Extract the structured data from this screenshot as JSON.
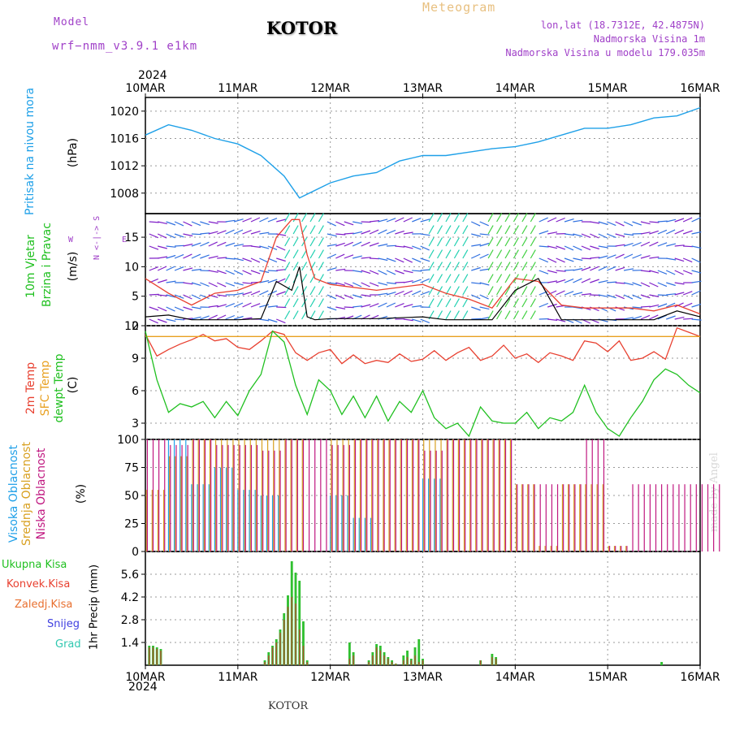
{
  "header": {
    "model_label": "Model",
    "model_name": "wrf−nmm_v3.9.1 e1km",
    "station": "KOTOR",
    "product": "Meteogram",
    "lonlat": "lon,lat (18.7312E, 42.4875N)",
    "elev": "Nadmorska Visina 1m",
    "elev_model": "Nadmorska Visina u modelu 179.035m",
    "year": "2024",
    "footer_station": "KOTOR",
    "watermark": "made by Angel"
  },
  "colors": {
    "pressure": "#1ea0e8",
    "temp2m": "#e84030",
    "sfctemp": "#e8a020",
    "dewpt": "#20c020",
    "high_cloud": "#20a0e8",
    "mid_cloud": "#d8a020",
    "low_cloud": "#c01880",
    "total_precip": "#30c030",
    "conv_precip": "#b05030",
    "wind_speed": "#000000",
    "wind_gust": "#e84030",
    "barb_calm": "#8020c8",
    "barb_strong": "#20d0b0"
  },
  "panel_labels": {
    "pressure": {
      "title": "Pritisak na nivou mora",
      "unit": "(hPa)"
    },
    "wind": {
      "title1": "10m Vjetar",
      "title2": "Brzina i Pravac",
      "unit": "(m/s)",
      "compass": "N S W E"
    },
    "temp": {
      "t2": "2m Temp",
      "sfc": "SFC Temp",
      "dew": "dewpt Temp",
      "unit": "(C)"
    },
    "cloud": {
      "high": "Visoka Oblacnost",
      "mid": "Srednja Oblacnost",
      "low": "Niska Oblacnost",
      "unit": "(%)"
    },
    "precip": {
      "total": "Ukupna Kisa",
      "conv": "Konvek.Kisa",
      "frozen": "Zaledj.Kisa",
      "snow": "Snijeg",
      "hail": "Grad",
      "unit": "1hr Precip (mm)"
    }
  },
  "chart_data": [
    {
      "type": "line",
      "name": "pressure",
      "x_ticks": [
        "10MAR",
        "11MAR",
        "12MAR",
        "13MAR",
        "14MAR",
        "15MAR",
        "16MAR"
      ],
      "ylim": [
        1005,
        1022
      ],
      "y_ticks": [
        1008,
        1012,
        1016,
        1020
      ],
      "x_hours": [
        0,
        6,
        12,
        18,
        24,
        30,
        36,
        40,
        48,
        54,
        60,
        66,
        72,
        78,
        84,
        90,
        96,
        102,
        108,
        114,
        120,
        126,
        132,
        138,
        144
      ],
      "values": [
        1016.5,
        1018.0,
        1017.2,
        1016.0,
        1015.2,
        1013.5,
        1010.5,
        1007.3,
        1009.5,
        1010.5,
        1011.0,
        1012.7,
        1013.5,
        1013.5,
        1014.0,
        1014.5,
        1014.8,
        1015.5,
        1016.5,
        1017.5,
        1017.5,
        1018.0,
        1019.0,
        1019.3,
        1020.5
      ],
      "grid": true
    },
    {
      "type": "line",
      "name": "wind",
      "ylim": [
        0,
        19
      ],
      "y_ticks": [
        0,
        5,
        10,
        15
      ],
      "x_hours": [
        0,
        6,
        12,
        18,
        24,
        30,
        34,
        38,
        40,
        42,
        44,
        48,
        60,
        72,
        78,
        84,
        90,
        96,
        102,
        108,
        114,
        120,
        126,
        132,
        138,
        144
      ],
      "speed": [
        1.5,
        1.8,
        1.0,
        1.0,
        1.0,
        1.2,
        7.5,
        6.0,
        10.0,
        1.5,
        1.0,
        1.2,
        1.2,
        1.5,
        1.0,
        1.0,
        1.0,
        6.0,
        8.0,
        1.0,
        1.0,
        1.0,
        1.0,
        1.0,
        2.5,
        1.5
      ],
      "gust": [
        8.0,
        5.5,
        3.5,
        5.5,
        6.0,
        7.5,
        15.0,
        18.0,
        18.0,
        12.0,
        8.0,
        7.0,
        6.0,
        7.0,
        5.5,
        4.5,
        3.0,
        8.0,
        7.5,
        3.5,
        3.0,
        3.0,
        3.0,
        2.5,
        3.5,
        2.0
      ],
      "grid": true
    },
    {
      "type": "line",
      "name": "temperature",
      "ylim": [
        1.5,
        12
      ],
      "y_ticks": [
        3,
        6,
        9,
        12
      ],
      "x_hours": [
        0,
        3,
        6,
        9,
        12,
        15,
        18,
        21,
        24,
        27,
        30,
        33,
        36,
        39,
        42,
        45,
        48,
        51,
        54,
        57,
        60,
        63,
        66,
        69,
        72,
        75,
        78,
        81,
        84,
        87,
        90,
        93,
        96,
        99,
        102,
        105,
        108,
        111,
        114,
        117,
        120,
        123,
        126,
        129,
        132,
        135,
        138,
        141,
        144
      ],
      "series": [
        {
          "name": "2m Temp",
          "values": [
            11.2,
            9.2,
            9.8,
            10.3,
            10.7,
            11.2,
            10.6,
            10.8,
            10.0,
            9.8,
            10.6,
            11.5,
            11.2,
            9.5,
            8.8,
            9.5,
            9.8,
            8.5,
            9.3,
            8.5,
            8.8,
            8.6,
            9.4,
            8.7,
            8.9,
            9.7,
            8.8,
            9.5,
            10.0,
            8.8,
            9.2,
            10.2,
            9.0,
            9.4,
            8.6,
            9.5,
            9.2,
            8.8,
            10.6,
            10.4,
            9.6,
            10.6,
            8.8,
            9.0,
            9.6,
            8.9,
            11.8,
            11.4,
            11.0
          ]
        },
        {
          "name": "SFC Temp",
          "values": [
            11.0,
            11.0,
            11.0,
            11.0,
            11.0,
            11.0,
            11.0,
            11.0,
            11.0,
            11.0,
            11.0,
            11.0,
            11.0,
            11.0,
            11.0,
            11.0,
            11.0,
            11.0,
            11.0,
            11.0,
            11.0,
            11.0,
            11.0,
            11.0,
            11.0,
            11.0,
            11.0,
            11.0,
            11.0,
            11.0,
            11.0,
            11.0,
            11.0,
            11.0,
            11.0,
            11.0,
            11.0,
            11.0,
            11.0,
            11.0,
            11.0,
            11.0,
            11.0,
            11.0,
            11.0,
            11.0,
            11.0,
            11.0,
            11.0
          ]
        },
        {
          "name": "dewpt Temp",
          "values": [
            11.5,
            7.0,
            4.0,
            4.8,
            4.5,
            5.0,
            3.5,
            5.0,
            3.7,
            6.0,
            7.5,
            11.5,
            10.5,
            6.5,
            3.8,
            7.0,
            6.0,
            3.8,
            5.5,
            3.5,
            5.5,
            3.2,
            5.0,
            4.0,
            6.0,
            3.5,
            2.5,
            3.0,
            1.8,
            4.5,
            3.2,
            3.0,
            3.0,
            4.0,
            2.5,
            3.5,
            3.2,
            4.0,
            6.5,
            4.0,
            2.5,
            1.8,
            3.5,
            5.0,
            7.0,
            8.0,
            7.5,
            6.5,
            5.8
          ]
        }
      ],
      "grid": true
    },
    {
      "type": "bar",
      "name": "cloud cover",
      "ylim": [
        0,
        100
      ],
      "y_ticks": [
        0,
        25,
        50,
        75,
        100
      ],
      "x_hours": [
        0,
        6,
        12,
        18,
        24,
        30,
        36,
        42,
        48,
        54,
        60,
        66,
        72,
        78,
        84,
        90,
        96,
        102,
        108,
        114,
        120,
        126,
        132,
        138,
        144
      ],
      "series": [
        {
          "name": "Visoka Oblacnost",
          "values": [
            0,
            100,
            60,
            75,
            55,
            50,
            0,
            0,
            50,
            30,
            0,
            0,
            65,
            0,
            0,
            0,
            0,
            0,
            0,
            0,
            0,
            0,
            0,
            0,
            0
          ]
        },
        {
          "name": "Srednja Oblacnost",
          "values": [
            55,
            85,
            100,
            100,
            100,
            100,
            100,
            0,
            100,
            100,
            100,
            100,
            100,
            100,
            100,
            100,
            60,
            5,
            60,
            60,
            5,
            0,
            0,
            0,
            0
          ]
        },
        {
          "name": "Niska Oblacnost",
          "values": [
            100,
            95,
            100,
            95,
            95,
            90,
            100,
            100,
            95,
            100,
            100,
            100,
            90,
            100,
            100,
            100,
            60,
            60,
            60,
            100,
            5,
            60,
            60,
            60,
            60
          ]
        }
      ],
      "grid": true
    },
    {
      "type": "bar",
      "name": "precipitation",
      "ylim": [
        0,
        7
      ],
      "y_ticks": [
        1.4,
        2.8,
        4.2,
        5.6
      ],
      "x_hours": [
        1,
        2,
        3,
        4,
        31,
        32,
        33,
        34,
        35,
        36,
        37,
        38,
        39,
        40,
        41,
        42,
        43,
        44,
        45,
        53,
        54,
        58,
        59,
        60,
        61,
        62,
        63,
        64,
        65,
        67,
        68,
        69,
        70,
        71,
        72,
        73,
        87,
        90,
        91,
        134
      ],
      "series": [
        {
          "name": "Ukupna Kisa",
          "values": [
            1.2,
            1.2,
            1.1,
            1.0,
            0.3,
            0.8,
            1.2,
            1.6,
            2.2,
            3.2,
            4.3,
            6.4,
            5.7,
            5.2,
            2.7,
            0.3,
            0.0,
            0.0,
            0.0,
            1.4,
            0.8,
            0.3,
            0.8,
            1.3,
            1.2,
            0.8,
            0.5,
            0.3,
            0.1,
            0.6,
            0.9,
            0.4,
            1.1,
            1.6,
            0.4,
            0.0,
            0.3,
            0.7,
            0.5,
            0.2
          ]
        },
        {
          "name": "Konvek.Kisa",
          "values": [
            1.1,
            1.1,
            1.0,
            0.9,
            0.2,
            0.6,
            1.1,
            1.4,
            2.0,
            2.8,
            3.6,
            4.2,
            3.8,
            2.2,
            1.2,
            0.2,
            0.0,
            0.0,
            0.0,
            0.4,
            0.6,
            0.2,
            0.6,
            1.1,
            0.9,
            0.6,
            0.4,
            0.2,
            0.1,
            0.3,
            0.5,
            0.3,
            0.6,
            0.2,
            0.3,
            0.0,
            0.3,
            0.5,
            0.4,
            0.0
          ]
        }
      ],
      "grid": true
    }
  ]
}
